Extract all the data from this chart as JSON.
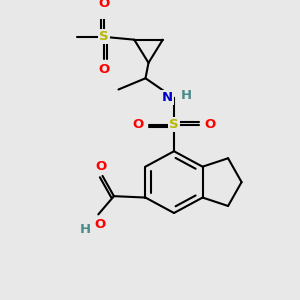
{
  "bg_color": "#e8e8e8",
  "bond_color": "#000000",
  "S_color": "#b8b800",
  "O_color": "#ff0000",
  "N_color": "#0000cc",
  "H_color": "#4a8a8a",
  "line_width": 1.5,
  "figsize": [
    3.0,
    3.0
  ],
  "dpi": 100,
  "xlim": [
    0,
    10
  ],
  "ylim": [
    0,
    10
  ]
}
